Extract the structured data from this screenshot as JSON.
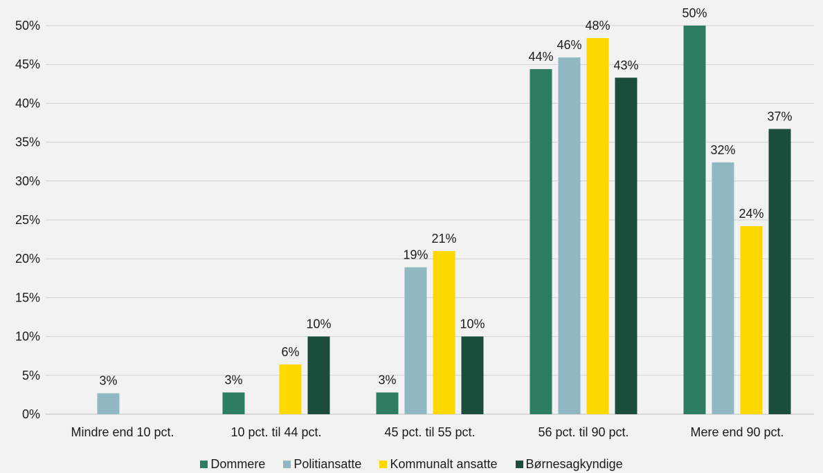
{
  "chart_data": {
    "type": "bar",
    "categories": [
      "Mindre end 10 pct.",
      "10 pct. til 44 pct.",
      "45 pct. til 55 pct.",
      "56 pct. til 90 pct.",
      "Mere end 90 pct."
    ],
    "series": [
      {
        "name": "Dommere",
        "color": "#2e7d62",
        "values": [
          0,
          2.8,
          2.8,
          44.4,
          50.0
        ],
        "labels": [
          "",
          "3%",
          "3%",
          "44%",
          "50%"
        ]
      },
      {
        "name": "Politiansatte",
        "color": "#8fb8c2",
        "values": [
          2.7,
          0,
          18.9,
          45.9,
          32.4
        ],
        "labels": [
          "3%",
          "",
          "19%",
          "46%",
          "32%"
        ]
      },
      {
        "name": "Kommunalt ansatte",
        "color": "#ffd800",
        "values": [
          0,
          6.4,
          21.0,
          48.4,
          24.2
        ],
        "labels": [
          "",
          "6%",
          "21%",
          "48%",
          "24%"
        ]
      },
      {
        "name": "Børnesagkyndige",
        "color": "#1a4d3c",
        "values": [
          0,
          10.0,
          10.0,
          43.3,
          36.7
        ],
        "labels": [
          "",
          "10%",
          "10%",
          "43%",
          "37%"
        ]
      }
    ],
    "y_ticks": [
      "0%",
      "5%",
      "10%",
      "15%",
      "20%",
      "25%",
      "30%",
      "35%",
      "40%",
      "45%",
      "50%"
    ],
    "ylim": [
      0,
      50
    ],
    "grid": true,
    "legend_position": "bottom",
    "title": "",
    "xlabel": "",
    "ylabel": ""
  }
}
